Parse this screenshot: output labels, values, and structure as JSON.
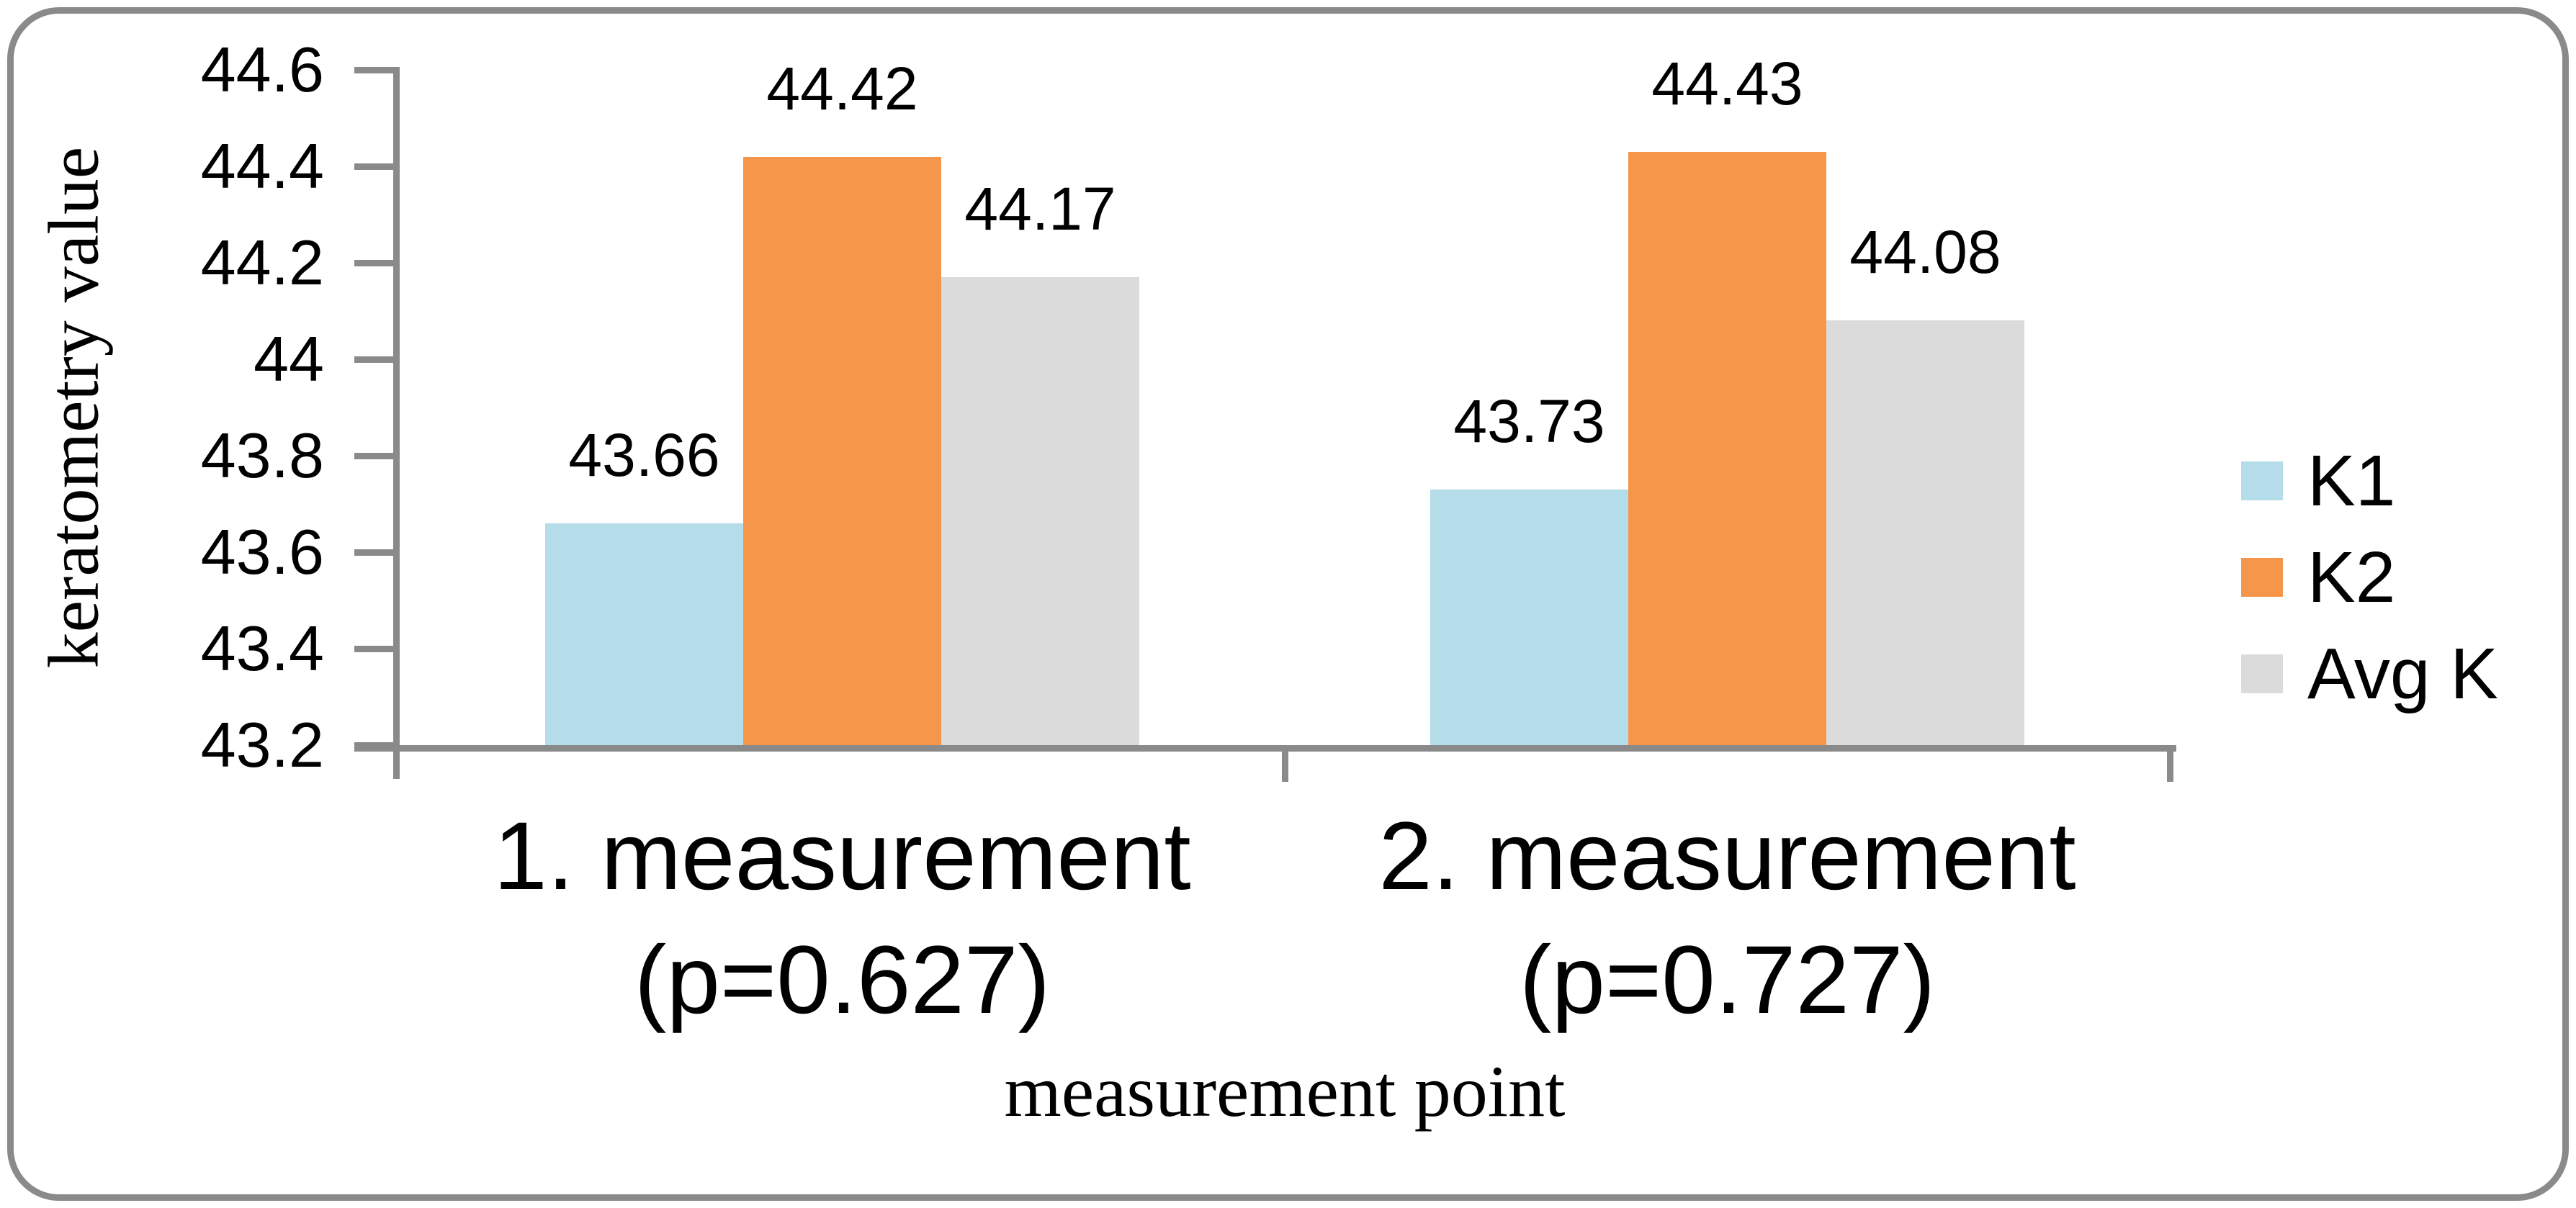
{
  "chart_data": {
    "type": "bar",
    "title": "",
    "xlabel": "measurement point",
    "ylabel": "keratometry value",
    "categories": [
      {
        "line1": "1. measurement",
        "line2": "(p=0.627)"
      },
      {
        "line1": "2. measurement",
        "line2": "(p=0.727)"
      }
    ],
    "series": [
      {
        "name": "K1",
        "color": "#B5DCE9",
        "values": [
          43.66,
          43.73
        ]
      },
      {
        "name": "K2",
        "color": "#F6964A",
        "values": [
          44.42,
          44.43
        ]
      },
      {
        "name": "Avg K",
        "color": "#DBDBDB",
        "values": [
          44.17,
          44.08
        ]
      }
    ],
    "data_labels": [
      [
        "43.66",
        "44.42",
        "44.17"
      ],
      [
        "43.73",
        "44.43",
        "44.08"
      ]
    ],
    "ylim": [
      43.2,
      44.6
    ],
    "ytick_step": 0.2,
    "yticks": [
      "44.6",
      "44.4",
      "44.2",
      "44",
      "43.8",
      "43.6",
      "43.4",
      "43.2"
    ],
    "grid": false,
    "legend_position": "right",
    "axis_color": "#8A8A8A",
    "border_color": "#8A8A8A",
    "text_color": "#000000"
  }
}
